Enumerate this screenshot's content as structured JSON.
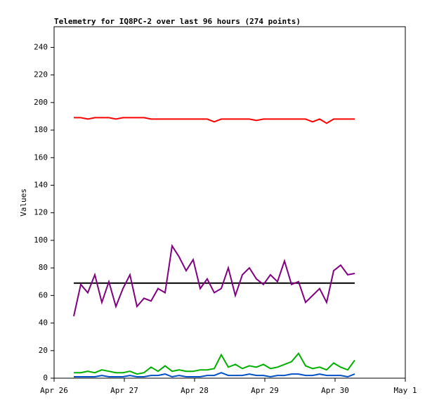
{
  "chart_data": {
    "type": "line",
    "title": "Telemetry for IQ8PC-2 over last 96 hours (274 points)",
    "ylabel": "Values",
    "x": [
      26.28,
      26.38,
      26.48,
      26.58,
      26.68,
      26.78,
      26.88,
      26.98,
      27.08,
      27.18,
      27.28,
      27.38,
      27.48,
      27.58,
      27.68,
      27.78,
      27.88,
      27.98,
      28.08,
      28.18,
      28.28,
      28.38,
      28.48,
      28.58,
      28.68,
      28.78,
      28.88,
      28.98,
      29.08,
      29.18,
      29.28,
      29.38,
      29.48,
      29.58,
      29.68,
      29.78,
      29.88,
      29.98,
      30.08,
      30.18,
      30.28
    ],
    "series": [
      {
        "color": "#ff0000",
        "values": [
          189,
          189,
          188,
          189,
          189,
          189,
          188,
          189,
          189,
          189,
          189,
          188,
          188,
          188,
          188,
          188,
          188,
          188,
          188,
          188,
          186,
          188,
          188,
          188,
          188,
          188,
          187,
          188,
          188,
          188,
          188,
          188,
          188,
          188,
          186,
          188,
          185,
          188,
          188,
          188,
          188
        ]
      },
      {
        "color": "#000000",
        "values": [
          69,
          69,
          69,
          69,
          69,
          69,
          69,
          69,
          69,
          69,
          69,
          69,
          69,
          69,
          69,
          69,
          69,
          69,
          69,
          69,
          69,
          69,
          69,
          69,
          69,
          69,
          69,
          69,
          69,
          69,
          69,
          69,
          69,
          69,
          69,
          69,
          69,
          69,
          69,
          69,
          69
        ]
      },
      {
        "color": "#800080",
        "values": [
          45,
          68,
          62,
          75,
          55,
          70,
          52,
          65,
          75,
          52,
          58,
          56,
          65,
          62,
          96,
          88,
          78,
          86,
          65,
          72,
          62,
          65,
          80,
          60,
          75,
          80,
          72,
          68,
          75,
          70,
          85,
          68,
          70,
          55,
          60,
          65,
          55,
          78,
          82,
          75,
          76
        ]
      },
      {
        "color": "#00b000",
        "values": [
          4,
          4,
          5,
          4,
          6,
          5,
          4,
          4,
          5,
          3,
          4,
          8,
          5,
          9,
          5,
          6,
          5,
          5,
          6,
          6,
          7,
          17,
          8,
          10,
          7,
          9,
          8,
          10,
          7,
          8,
          10,
          12,
          18,
          9,
          7,
          8,
          6,
          11,
          8,
          6,
          13
        ]
      },
      {
        "color": "#0050c8",
        "values": [
          1,
          1,
          1,
          1,
          2,
          1,
          1,
          1,
          2,
          1,
          1,
          2,
          2,
          3,
          1,
          2,
          1,
          1,
          1,
          2,
          2,
          4,
          2,
          2,
          2,
          3,
          2,
          2,
          1,
          2,
          2,
          3,
          3,
          2,
          2,
          3,
          2,
          2,
          2,
          1,
          3
        ]
      }
    ],
    "xlim": [
      26,
      31
    ],
    "xticks": [
      {
        "value": 26,
        "label": "Apr 26"
      },
      {
        "value": 27,
        "label": "Apr 27"
      },
      {
        "value": 28,
        "label": "Apr 28"
      },
      {
        "value": 29,
        "label": "Apr 29"
      },
      {
        "value": 30,
        "label": "Apr 30"
      },
      {
        "value": 31,
        "label": "May 1"
      }
    ],
    "ylim": [
      0,
      255
    ],
    "yticks": [
      0,
      20,
      40,
      60,
      80,
      100,
      120,
      140,
      160,
      180,
      200,
      220,
      240
    ]
  }
}
